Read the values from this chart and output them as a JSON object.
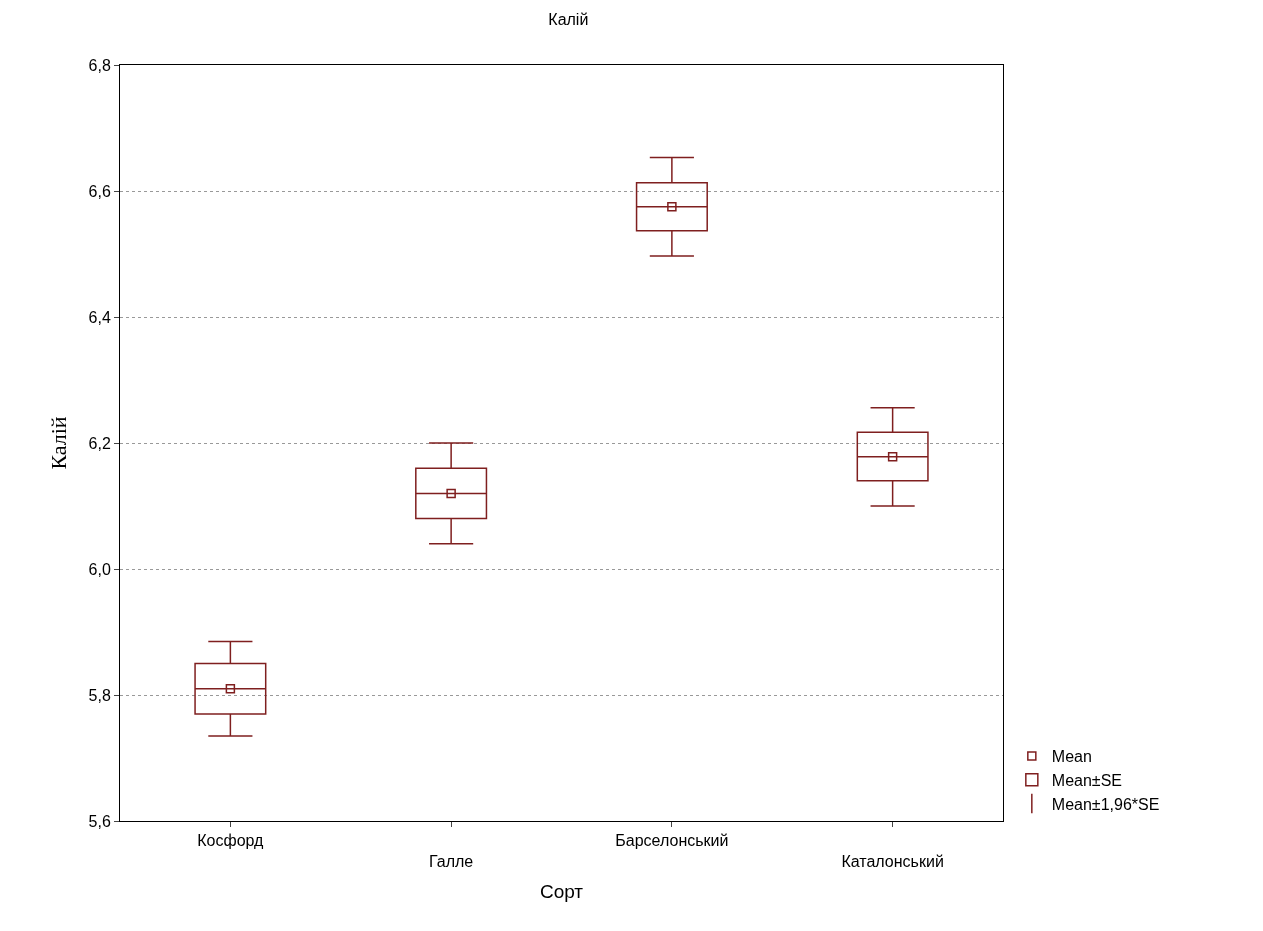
{
  "chart_data": {
    "type": "box",
    "title": "Калій",
    "xlabel": "Сорт",
    "ylabel": "Калій",
    "categories": [
      "Косфорд",
      "Галле",
      "Барселонський",
      "Каталонський"
    ],
    "color": "#7f1f1f",
    "boxes": [
      {
        "low": 5.735,
        "q1": 5.77,
        "median": 5.81,
        "q3": 5.85,
        "high": 5.885,
        "mean": 5.81
      },
      {
        "low": 6.04,
        "q1": 6.08,
        "median": 6.12,
        "q3": 6.16,
        "high": 6.2,
        "mean": 6.12
      },
      {
        "low": 6.497,
        "q1": 6.537,
        "median": 6.575,
        "q3": 6.613,
        "high": 6.653,
        "mean": 6.575
      },
      {
        "low": 6.1,
        "q1": 6.14,
        "median": 6.178,
        "q3": 6.217,
        "high": 6.256,
        "mean": 6.178
      }
    ],
    "annotations": [
      "Mean",
      "Mean±SE",
      "Mean±1,96*SE"
    ],
    "ylim": [
      5.6,
      6.8
    ],
    "yticks": [
      {
        "value": 5.6,
        "label": "5,6"
      },
      {
        "value": 5.8,
        "label": "5,8"
      },
      {
        "value": 6.0,
        "label": "6,0"
      },
      {
        "value": 6.2,
        "label": "6,2"
      },
      {
        "value": 6.4,
        "label": "6,4"
      },
      {
        "value": 6.6,
        "label": "6,6"
      },
      {
        "value": 6.8,
        "label": "6,8"
      }
    ],
    "grid": "y",
    "marker": "square"
  }
}
